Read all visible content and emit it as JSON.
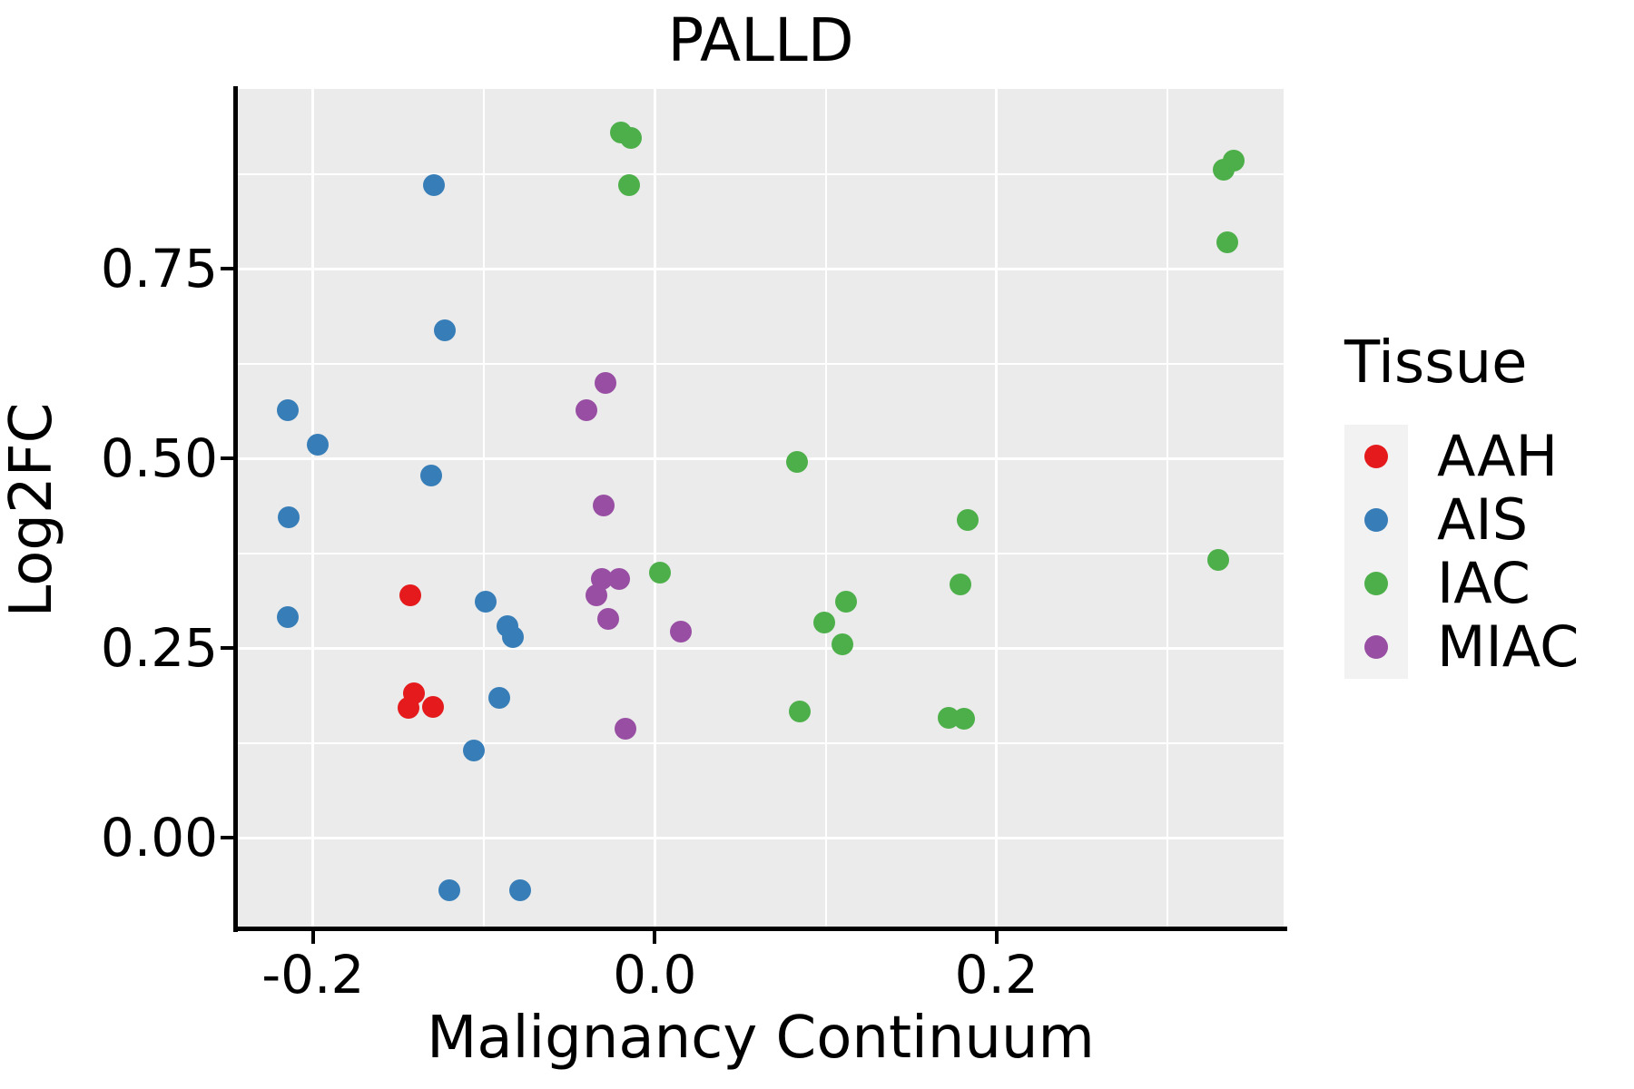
{
  "title": "PALLD",
  "chart_data": {
    "type": "scatter",
    "title": "PALLD",
    "xlabel": "Malignancy Continuum",
    "ylabel": "Log2FC",
    "xlim": [
      -0.244,
      0.368
    ],
    "ylim": [
      -0.117,
      0.987
    ],
    "x_ticks": [
      -0.2,
      0.0,
      0.2
    ],
    "x_tick_labels": [
      "-0.2",
      "0.0",
      "0.2"
    ],
    "x_minor_breaks": [
      -0.1,
      0.1,
      0.3
    ],
    "y_ticks": [
      0.0,
      0.25,
      0.5,
      0.75
    ],
    "y_tick_labels": [
      "0.00",
      "0.25",
      "0.50",
      "0.75"
    ],
    "y_minor_breaks": [
      0.125,
      0.375,
      0.625,
      0.875
    ],
    "grid": true,
    "legend_title": "Tissue",
    "legend_position": "right",
    "series": [
      {
        "name": "AAH",
        "color": "#E41A1C",
        "points": [
          [
            -0.143,
            0.319
          ],
          [
            -0.141,
            0.19
          ],
          [
            -0.144,
            0.171
          ],
          [
            -0.13,
            0.173
          ]
        ]
      },
      {
        "name": "AIS",
        "color": "#377EB8",
        "points": [
          [
            -0.129,
            0.86
          ],
          [
            -0.123,
            0.669
          ],
          [
            -0.215,
            0.563
          ],
          [
            -0.197,
            0.518
          ],
          [
            -0.131,
            0.478
          ],
          [
            -0.214,
            0.423
          ],
          [
            -0.215,
            0.291
          ],
          [
            -0.099,
            0.311
          ],
          [
            -0.086,
            0.279
          ],
          [
            -0.083,
            0.264
          ],
          [
            -0.091,
            0.184
          ],
          [
            -0.106,
            0.115
          ],
          [
            -0.12,
            -0.069
          ],
          [
            -0.079,
            -0.069
          ]
        ]
      },
      {
        "name": "IAC",
        "color": "#4DAF4A",
        "points": [
          [
            -0.02,
            0.929
          ],
          [
            -0.014,
            0.922
          ],
          [
            -0.015,
            0.86
          ],
          [
            0.333,
            0.88
          ],
          [
            0.339,
            0.893
          ],
          [
            0.335,
            0.785
          ],
          [
            0.083,
            0.496
          ],
          [
            0.183,
            0.419
          ],
          [
            0.33,
            0.366
          ],
          [
            0.179,
            0.334
          ],
          [
            0.112,
            0.311
          ],
          [
            0.099,
            0.284
          ],
          [
            0.11,
            0.255
          ],
          [
            0.003,
            0.35
          ],
          [
            0.085,
            0.166
          ],
          [
            0.172,
            0.158
          ],
          [
            0.181,
            0.157
          ]
        ]
      },
      {
        "name": "MIAC",
        "color": "#984EA3",
        "points": [
          [
            -0.029,
            0.599
          ],
          [
            -0.04,
            0.563
          ],
          [
            -0.03,
            0.438
          ],
          [
            -0.031,
            0.341
          ],
          [
            -0.021,
            0.341
          ],
          [
            -0.034,
            0.32
          ],
          [
            -0.027,
            0.288
          ],
          [
            0.015,
            0.272
          ],
          [
            -0.017,
            0.144
          ]
        ]
      }
    ],
    "style": {
      "panel_bg": "#EBEBEB",
      "grid_color": "#FFFFFF",
      "axis_color": "#000000",
      "text_color": "#000000",
      "legend_key_bg": "#F2F2F2"
    }
  }
}
